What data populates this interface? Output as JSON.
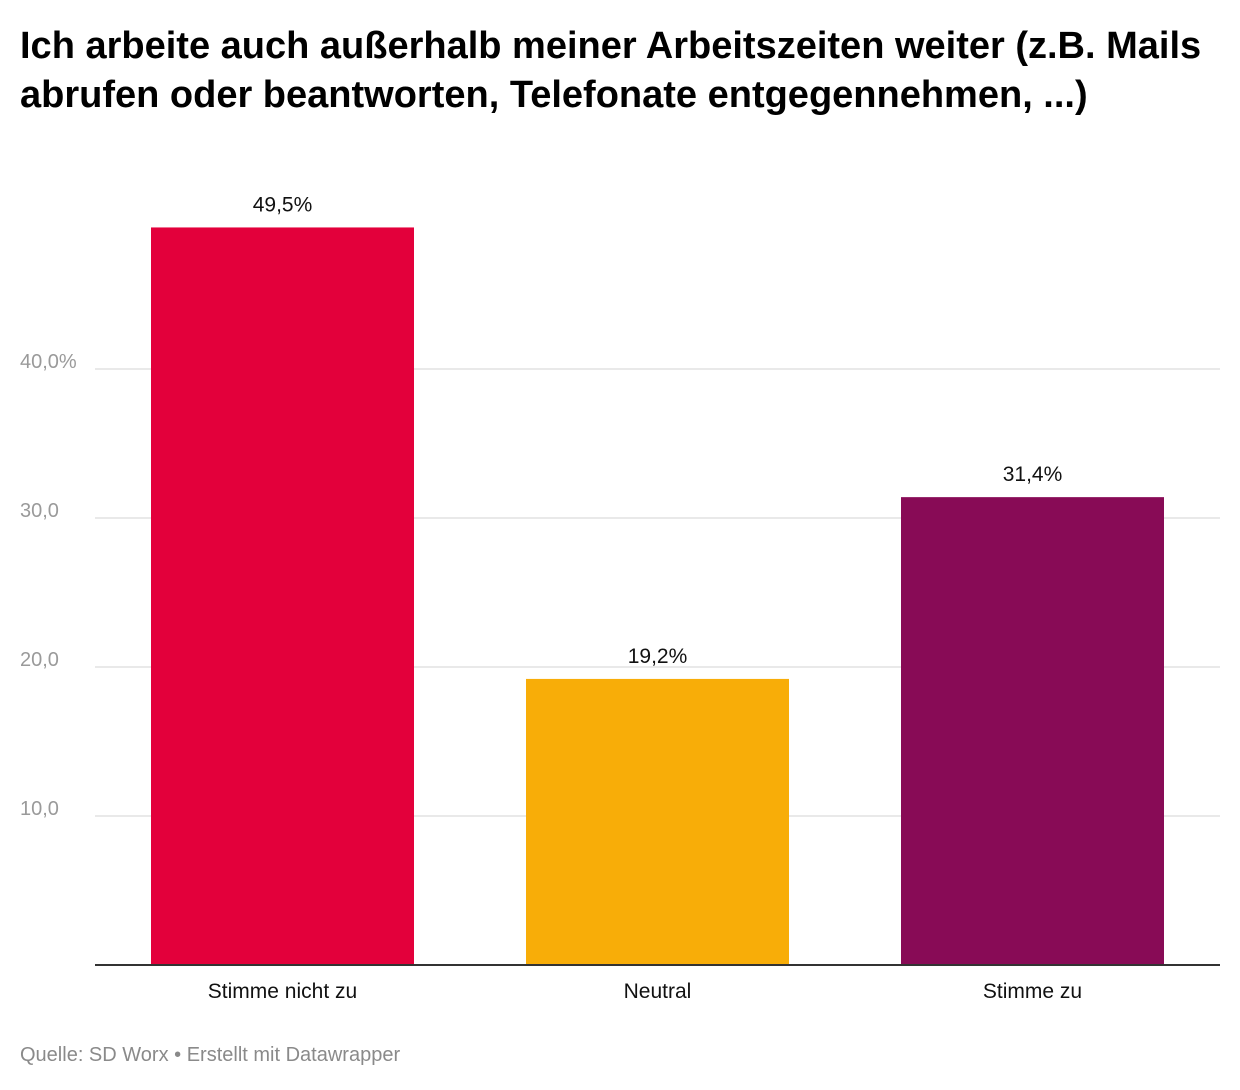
{
  "title": "Ich arbeite auch außerhalb meiner Arbeitszeiten weiter (z.B. Mails abrufen oder beantworten, Telefonate entgegennehmen, ...)",
  "footer": {
    "source": "Quelle: SD Worx",
    "separator": " • ",
    "credit": "Erstellt mit Datawrapper"
  },
  "chart_data": {
    "type": "bar",
    "title": "Ich arbeite auch außerhalb meiner Arbeitszeiten weiter (z.B. Mails abrufen oder beantworten, Telefonate entgegennehmen, ...)",
    "categories": [
      "Stimme nicht zu",
      "Neutral",
      "Stimme zu"
    ],
    "values": [
      49.5,
      19.2,
      31.4
    ],
    "value_labels": [
      "49,5%",
      "19,2%",
      "31,4%"
    ],
    "colors": [
      "#e3003b",
      "#f8ad08",
      "#880b56"
    ],
    "ylim": [
      0,
      50
    ],
    "y_ticks": [
      10,
      20,
      30,
      40
    ],
    "y_tick_labels": [
      "10,0",
      "20,0",
      "30,0",
      "40,0%"
    ],
    "xlabel": "",
    "ylabel": "",
    "grid": true,
    "legend": "none"
  }
}
